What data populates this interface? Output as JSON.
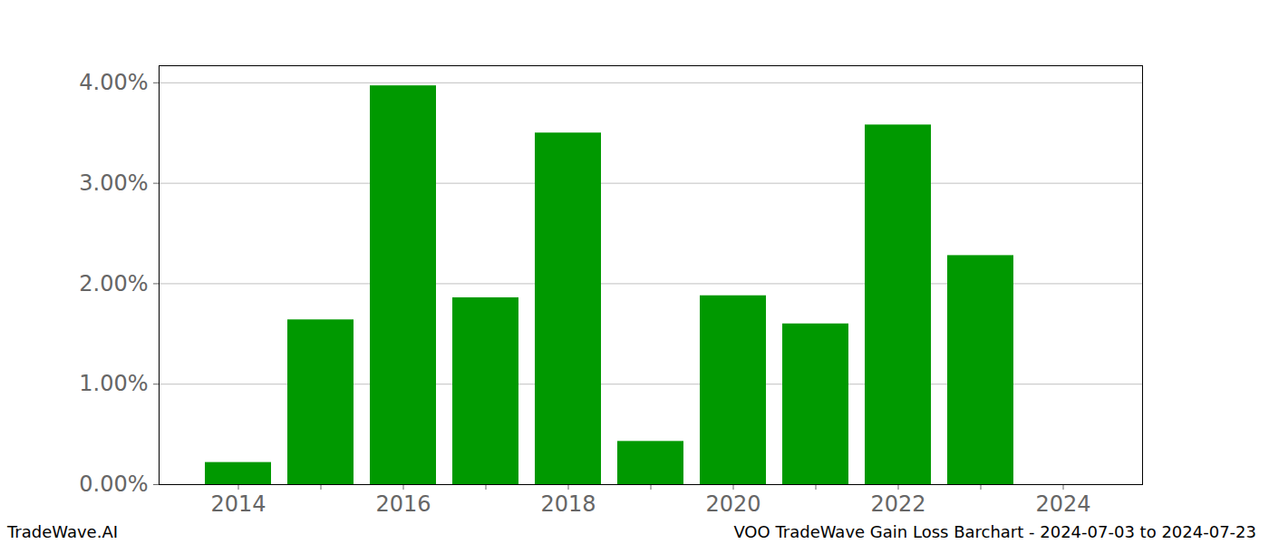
{
  "chart_data": {
    "type": "bar",
    "categories": [
      "2014",
      null,
      "2016",
      null,
      "2018",
      null,
      "2020",
      null,
      "2022",
      null,
      "2024"
    ],
    "values": [
      0.22,
      1.64,
      3.97,
      1.86,
      3.5,
      0.43,
      1.88,
      1.6,
      3.58,
      2.28,
      null
    ],
    "color": "#009900",
    "ylim": [
      0,
      4.17
    ],
    "yticks": [
      {
        "value": 0,
        "label": "0.00%"
      },
      {
        "value": 1,
        "label": "1.00%"
      },
      {
        "value": 2,
        "label": "2.00%"
      },
      {
        "value": 3,
        "label": "3.00%"
      },
      {
        "value": 4,
        "label": "4.00%"
      }
    ],
    "grid": true,
    "annotations": [
      "TradeWave.AI",
      "VOO TradeWave Gain Loss Barchart - 2024-07-03 to 2024-07-23"
    ]
  }
}
